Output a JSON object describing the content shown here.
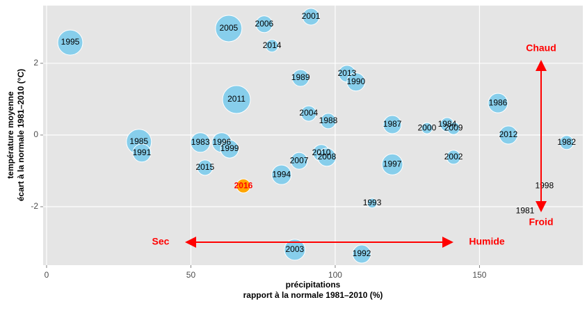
{
  "chart_data": {
    "type": "scatter",
    "x_label": [
      "précipitations",
      "rapport à la normale 1981–2010 (%)"
    ],
    "y_label": [
      "température moyenne",
      "écart à la normale 1981–2010 (°C)"
    ],
    "labels": [
      "1995",
      "2005",
      "2006",
      "2001",
      "2014",
      "1989",
      "2013",
      "1990",
      "2011",
      "2004",
      "1988",
      "1987",
      "2000",
      "1984",
      "2009",
      "1986",
      "2012",
      "1982",
      "1985",
      "1991",
      "1983",
      "1996",
      "1999",
      "2015",
      "2010",
      "2008",
      "2007",
      "1997",
      "2002",
      "1994",
      "2016",
      "1993",
      "1998",
      "1981",
      "2003",
      "1992"
    ],
    "x": [
      8.2,
      63.1,
      75.4,
      91.6,
      78.1,
      88.0,
      104.1,
      107.2,
      65.8,
      90.8,
      97.6,
      119.8,
      131.8,
      138.8,
      141.0,
      156.4,
      160.0,
      180.2,
      32.0,
      33.0,
      53.3,
      60.7,
      63.4,
      54.9,
      95.2,
      97.1,
      87.5,
      119.8,
      141.0,
      81.4,
      68.2,
      112.8,
      172.5,
      165.8,
      86.0,
      109.2
    ],
    "values": [
      2.58,
      2.97,
      3.09,
      3.3,
      2.49,
      1.59,
      1.71,
      1.48,
      0.99,
      0.6,
      0.39,
      0.29,
      0.19,
      0.29,
      0.19,
      0.89,
      0.0,
      -0.21,
      -0.19,
      -0.5,
      -0.21,
      -0.21,
      -0.39,
      -0.91,
      -0.5,
      -0.62,
      -0.72,
      -0.82,
      -0.62,
      -1.11,
      -1.42,
      -1.9,
      -1.42,
      -2.12,
      -3.2,
      -3.32
    ],
    "sizes": [
      18,
      19,
      12,
      12,
      9,
      12,
      12,
      13,
      20,
      11,
      11,
      13,
      8,
      10,
      9,
      14,
      13,
      10,
      18,
      13,
      14,
      14,
      13,
      11,
      12,
      13,
      12,
      15,
      10,
      14,
      10,
      7,
      0,
      0,
      15,
      13
    ],
    "colors": [
      "#87ceeb",
      "#87ceeb",
      "#87ceeb",
      "#87ceeb",
      "#87ceeb",
      "#87ceeb",
      "#87ceeb",
      "#87ceeb",
      "#87ceeb",
      "#87ceeb",
      "#87ceeb",
      "#87ceeb",
      "#87ceeb",
      "#87ceeb",
      "#87ceeb",
      "#87ceeb",
      "#87ceeb",
      "#87ceeb",
      "#87ceeb",
      "#87ceeb",
      "#87ceeb",
      "#87ceeb",
      "#87ceeb",
      "#87ceeb",
      "#87ceeb",
      "#87ceeb",
      "#87ceeb",
      "#87ceeb",
      "#87ceeb",
      "#87ceeb",
      "#ffa500",
      "#87ceeb",
      "#87ceeb",
      "#87ceeb",
      "#87ceeb",
      "#87ceeb"
    ],
    "label_colors": [
      "#000000",
      "#000000",
      "#000000",
      "#000000",
      "#000000",
      "#000000",
      "#000000",
      "#000000",
      "#000000",
      "#000000",
      "#000000",
      "#000000",
      "#000000",
      "#000000",
      "#000000",
      "#000000",
      "#000000",
      "#000000",
      "#000000",
      "#000000",
      "#000000",
      "#000000",
      "#000000",
      "#000000",
      "#000000",
      "#000000",
      "#000000",
      "#000000",
      "#000000",
      "#000000",
      "#ff0000",
      "#000000",
      "#000000",
      "#000000",
      "#000000",
      "#000000"
    ],
    "xlim": [
      -1.2,
      185.8
    ],
    "ylim": [
      -3.63,
      3.61
    ],
    "xticks": [
      0,
      50,
      100,
      150
    ],
    "yticks": [
      -2,
      0,
      2
    ],
    "grid": true,
    "annotations": [
      "Chaud",
      "Froid",
      "Sec",
      "Humide"
    ]
  }
}
